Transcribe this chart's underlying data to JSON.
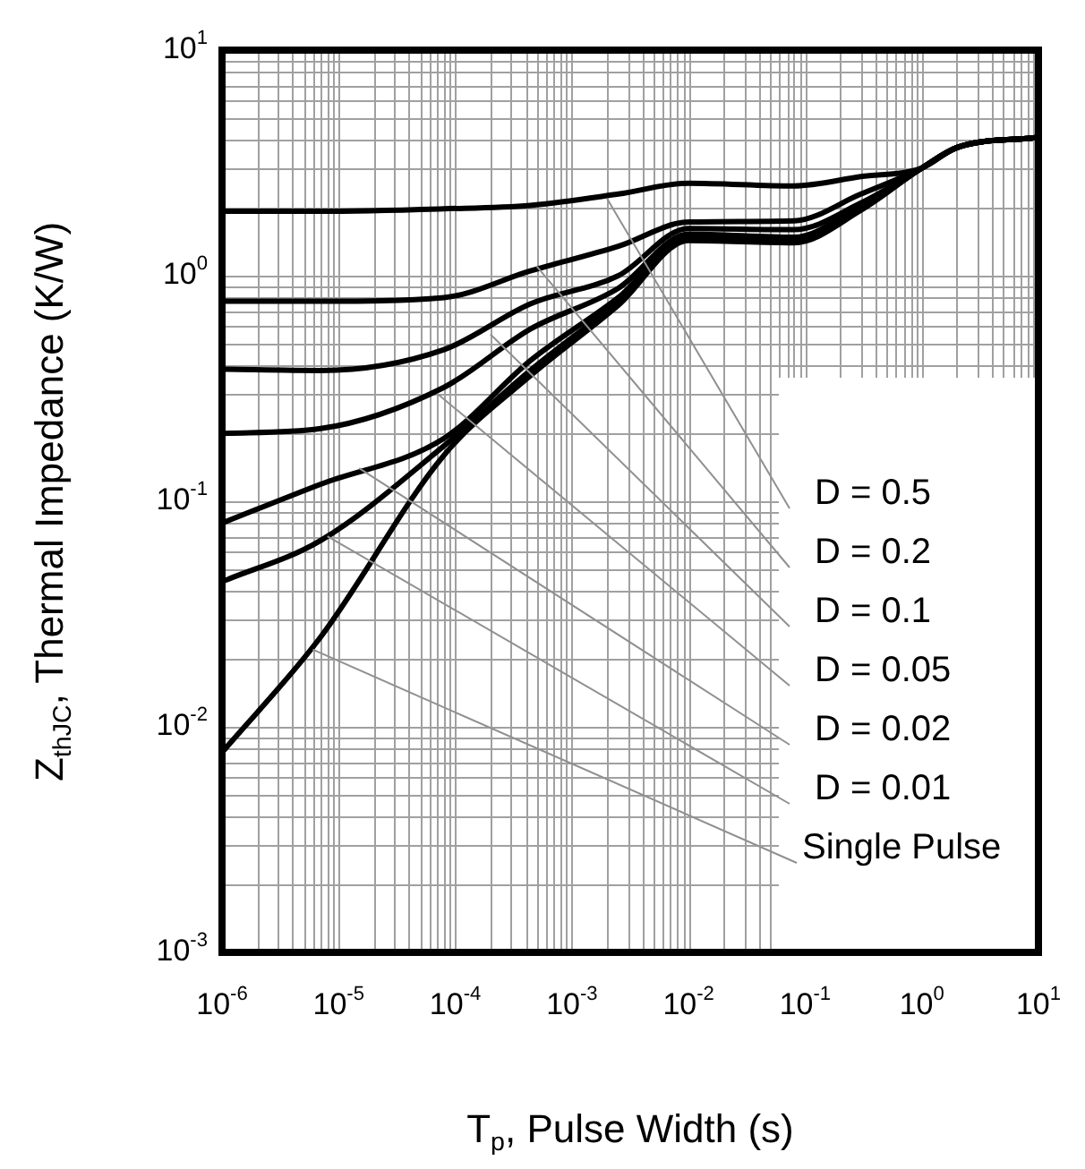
{
  "chart_data": {
    "type": "line",
    "xlabel": "T$_{p}$, Pulse Width (s)",
    "ylabel": "Z$_{thJC}$, Thermal Impedance (K/W)",
    "log": "xy",
    "grid": true,
    "legend": false,
    "marker": "none",
    "line_style": "solid",
    "x": [
      1e-06,
      7e-06,
      8e-05,
      0.00044,
      0.0025,
      0.01,
      0.08,
      0.3,
      1,
      2,
      10
    ],
    "xlim": [
      1e-06,
      10
    ],
    "xticks": [
      {
        "value": 1e-06,
        "label": "10$^{-6}$"
      },
      {
        "value": 1e-05,
        "label": "10$^{-5}$"
      },
      {
        "value": 0.0001,
        "label": "10$^{-4}$"
      },
      {
        "value": 0.001,
        "label": "10$^{-3}$"
      },
      {
        "value": 0.01,
        "label": "10$^{-2}$"
      },
      {
        "value": 0.1,
        "label": "10$^{-1}$"
      },
      {
        "value": 1,
        "label": "10$^{0}$"
      },
      {
        "value": 10,
        "label": "10$^{1}$"
      }
    ],
    "ylim": [
      0.001,
      10
    ],
    "yticks": [
      {
        "value": 0.001,
        "label": "10$^{-3}$"
      },
      {
        "value": 0.01,
        "label": "10$^{-2}$"
      },
      {
        "value": 0.1,
        "label": "10$^{-1}$"
      },
      {
        "value": 1,
        "label": "10$^{0}$"
      },
      {
        "value": 10,
        "label": "10$^{1}$"
      }
    ],
    "series": [
      {
        "color": "#000000",
        "values": [
          1.93,
          1.93,
          1.98,
          2.05,
          2.3,
          2.57,
          2.5,
          2.75,
          3.0,
          3.7,
          4.1
        ]
      },
      {
        "color": "#000000",
        "values": [
          0.77,
          0.77,
          0.8,
          1.05,
          1.35,
          1.73,
          1.75,
          2.3,
          3.0,
          3.7,
          4.1
        ]
      },
      {
        "color": "#000000",
        "values": [
          0.385,
          0.38,
          0.47,
          0.75,
          1.0,
          1.62,
          1.6,
          2.1,
          3.0,
          3.7,
          4.1
        ]
      },
      {
        "color": "#000000",
        "values": [
          0.2,
          0.21,
          0.32,
          0.58,
          0.88,
          1.53,
          1.48,
          2.05,
          3.0,
          3.7,
          4.1
        ]
      },
      {
        "color": "#000000",
        "values": [
          0.08,
          0.119,
          0.19,
          0.42,
          0.8,
          1.47,
          1.43,
          2.0,
          3.0,
          3.7,
          4.1
        ]
      },
      {
        "color": "#000000",
        "values": [
          0.044,
          0.067,
          0.176,
          0.38,
          0.77,
          1.45,
          1.41,
          1.98,
          3.0,
          3.7,
          4.1
        ]
      },
      {
        "color": "#000000",
        "values": [
          0.0077,
          0.025,
          0.16,
          0.36,
          0.74,
          1.43,
          1.4,
          1.95,
          3.0,
          3.7,
          4.1
        ]
      }
    ],
    "annotations": [
      {
        "text": "D = 0.5",
        "x": 0.002,
        "y": 2.2
      },
      {
        "text": "D = 0.2",
        "x": 0.0005,
        "y": 1.1
      },
      {
        "text": "D = 0.1",
        "x": 0.0002,
        "y": 0.55
      },
      {
        "text": "D = 0.05",
        "x": 7e-05,
        "y": 0.3
      },
      {
        "text": "D = 0.02",
        "x": 1.5e-05,
        "y": 0.14
      },
      {
        "text": "D = 0.01",
        "x": 8e-06,
        "y": 0.07
      },
      {
        "text": "Single Pulse",
        "x": 6e-06,
        "y": 0.022
      }
    ]
  }
}
